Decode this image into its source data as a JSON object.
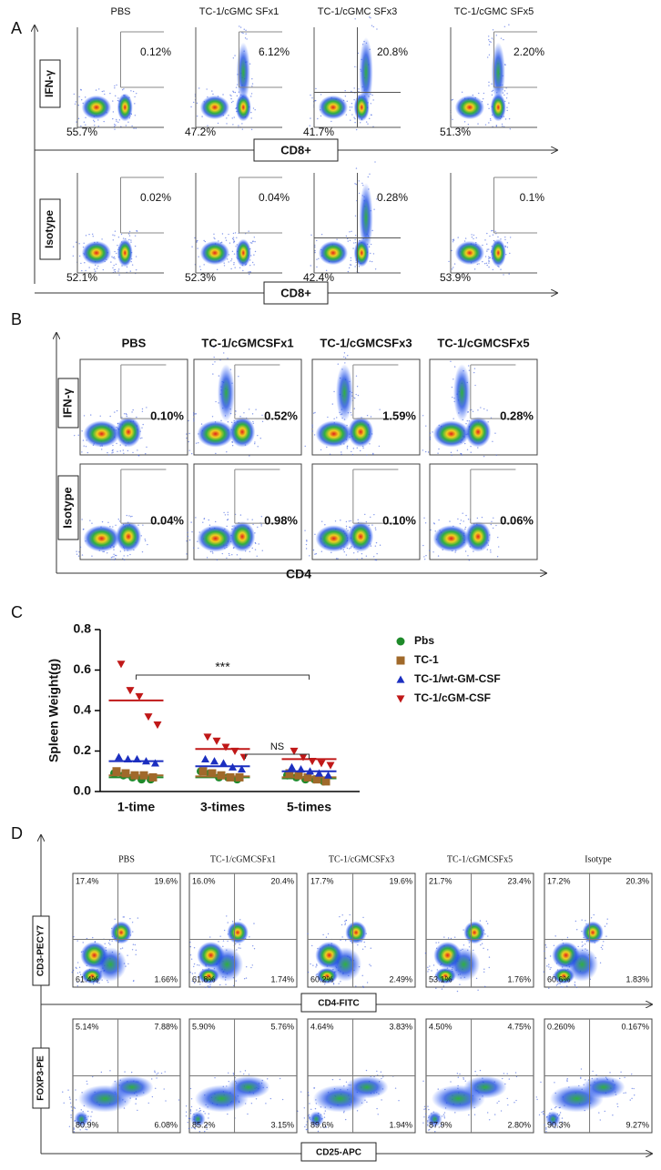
{
  "panel_a": {
    "label": "A",
    "columns": [
      "PBS",
      "TC-1/cGMC SFx1",
      "TC-1/cGMC SFx3",
      "TC-1/cGMC SFx5"
    ],
    "rows": [
      {
        "y_label": "IFN-γ",
        "x_label": "CD8+",
        "upper": [
          "0.12%",
          "6.12%",
          "20.8%",
          "2.20%"
        ],
        "lower": [
          "55.7%",
          "47.2%",
          "41.7%",
          "51.3%"
        ]
      },
      {
        "y_label": "Isotype",
        "x_label": "CD8+",
        "upper": [
          "0.02%",
          "0.04%",
          "0.28%",
          "0.1%"
        ],
        "lower": [
          "52.1%",
          "52.3%",
          "42.4%",
          "53.9%"
        ]
      }
    ]
  },
  "panel_b": {
    "label": "B",
    "columns": [
      "PBS",
      "TC-1/cGMCSFx1",
      "TC-1/cGMCSFx3",
      "TC-1/cGMCSFx5"
    ],
    "x_label": "CD4",
    "rows": [
      {
        "y_label": "IFN-γ",
        "values": [
          "0.10%",
          "0.52%",
          "1.59%",
          "0.28%"
        ]
      },
      {
        "y_label": "Isotype",
        "values": [
          "0.04%",
          "0.98%",
          "0.10%",
          "0.06%"
        ]
      }
    ]
  },
  "chart_data": {
    "type": "scatter",
    "panel_label": "C",
    "y_label": "Spleen Weight(g)",
    "categories": [
      "1-time",
      "3-times",
      "5-times"
    ],
    "ylim": [
      0,
      0.8
    ],
    "yticks": [
      {
        "value": 0,
        "label": "0.0"
      },
      0.2,
      0.4,
      0.6,
      0.8
    ],
    "legend": "right",
    "series": [
      {
        "name": "Pbs",
        "color": "#1e8a2a",
        "marker": "circle",
        "values": [
          [
            0.09,
            0.08,
            0.07,
            0.06,
            0.06
          ],
          [
            0.1,
            0.09,
            0.07,
            0.07,
            0.06
          ],
          [
            0.08,
            0.07,
            0.06,
            0.06,
            0.05
          ]
        ],
        "means": [
          0.07,
          0.07,
          0.065
        ]
      },
      {
        "name": "TC-1",
        "color": "#a0692a",
        "marker": "square",
        "values": [
          [
            0.1,
            0.09,
            0.08,
            0.08,
            0.07
          ],
          [
            0.1,
            0.09,
            0.08,
            0.07,
            0.07
          ],
          [
            0.09,
            0.08,
            0.07,
            0.06,
            0.05
          ]
        ],
        "means": [
          0.08,
          0.075,
          0.07
        ]
      },
      {
        "name": "TC-1/wt-GM-CSF",
        "color": "#1c2fc0",
        "marker": "triangle-up",
        "values": [
          [
            0.17,
            0.16,
            0.16,
            0.15,
            0.14
          ],
          [
            0.16,
            0.15,
            0.14,
            0.12,
            0.11
          ],
          [
            0.12,
            0.11,
            0.1,
            0.09,
            0.08
          ]
        ],
        "means": [
          0.15,
          0.125,
          0.1
        ]
      },
      {
        "name": "TC-1/cGM-CSF",
        "color": "#c01818",
        "marker": "triangle-down",
        "values": [
          [
            0.63,
            0.5,
            0.47,
            0.37,
            0.33
          ],
          [
            0.27,
            0.25,
            0.22,
            0.2,
            0.17
          ],
          [
            0.2,
            0.17,
            0.15,
            0.14,
            0.13
          ]
        ],
        "means": [
          0.45,
          0.21,
          0.16
        ]
      }
    ],
    "annotations": [
      "***",
      "NS"
    ]
  },
  "panel_d": {
    "label": "D",
    "columns": [
      "PBS",
      "TC-1/cGMCSFx1",
      "TC-1/cGMCSFx3",
      "TC-1/cGMCSFx5",
      "Isotype"
    ],
    "rows": [
      {
        "y_label": "CD3-PECY7",
        "x_label": "CD4-FITC",
        "quadrants": [
          [
            "17.4%",
            "19.6%",
            "61.4%",
            "1.66%"
          ],
          [
            "16.0%",
            "20.4%",
            "61.8%",
            "1.74%"
          ],
          [
            "17.7%",
            "19.6%",
            "60.2%",
            "2.49%"
          ],
          [
            "21.7%",
            "23.4%",
            "53.1%",
            "1.76%"
          ],
          [
            "17.2%",
            "20.3%",
            "60.6%",
            "1.83%"
          ]
        ]
      },
      {
        "y_label": "FOXP3-PE",
        "x_label": "CD25-APC",
        "quadrants": [
          [
            "5.14%",
            "7.88%",
            "80.9%",
            "6.08%"
          ],
          [
            "5.90%",
            "5.76%",
            "85.2%",
            "3.15%"
          ],
          [
            "4.64%",
            "3.83%",
            "89.6%",
            "1.94%"
          ],
          [
            "4.50%",
            "4.75%",
            "87.9%",
            "2.80%"
          ],
          [
            "0.260%",
            "0.167%",
            "90.3%",
            "9.27%"
          ]
        ]
      }
    ]
  }
}
